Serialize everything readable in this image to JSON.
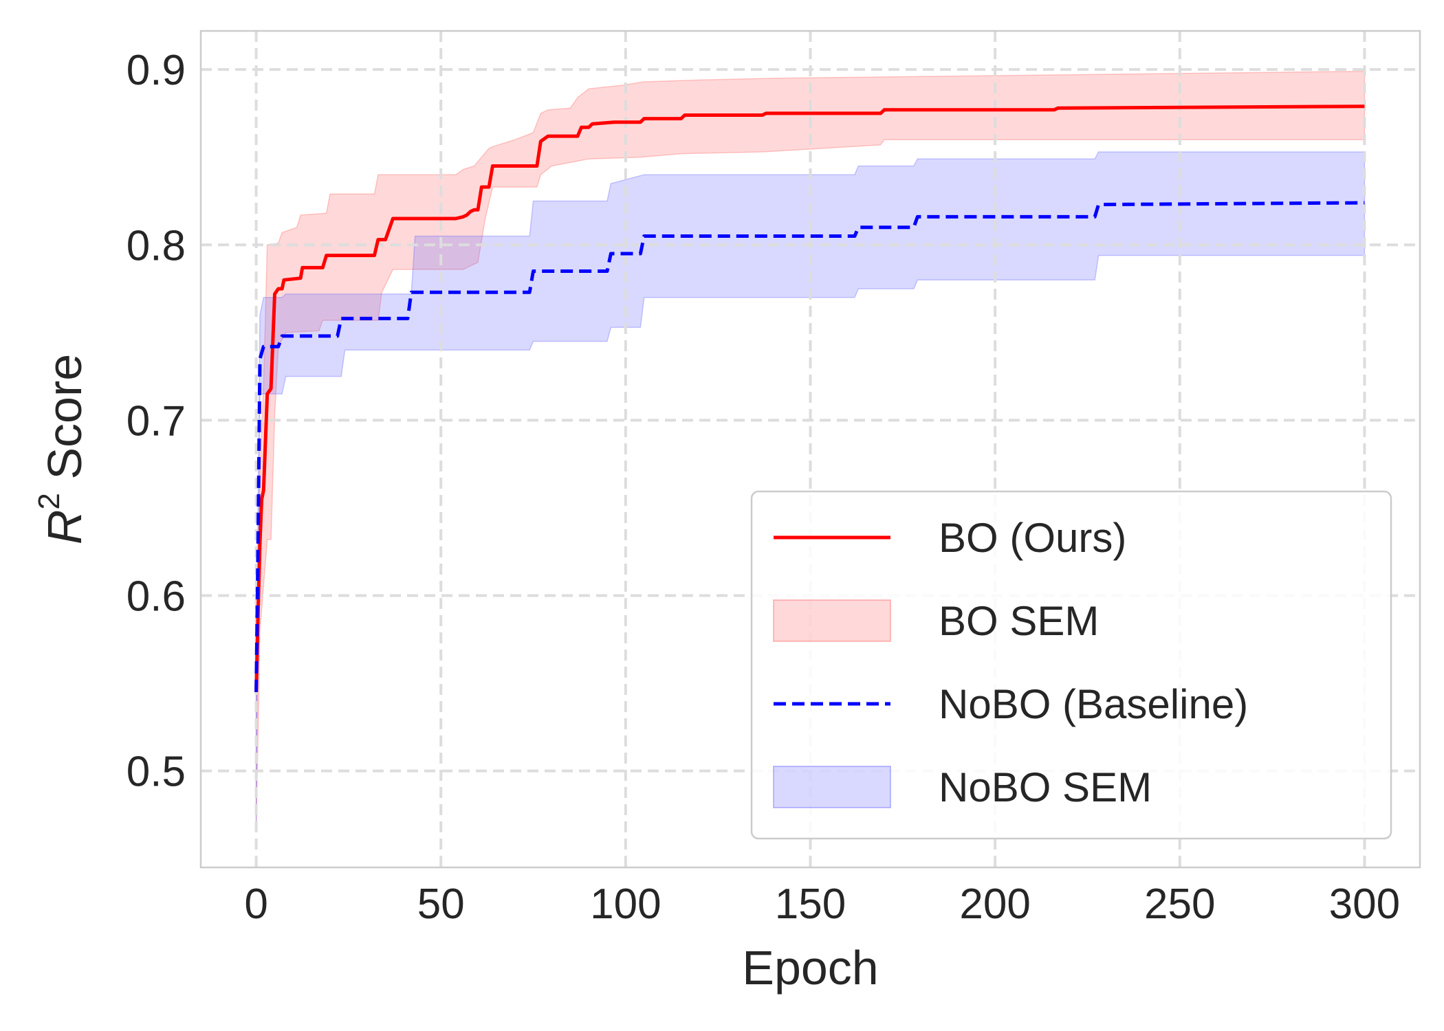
{
  "chart_data": {
    "type": "line",
    "xlabel": "Epoch",
    "ylabel": {
      "main": "R",
      "sup": "2",
      "rest": " Score"
    },
    "xlim": [
      -15,
      315
    ],
    "ylim": [
      0.445,
      0.922
    ],
    "xticks": [
      0,
      50,
      100,
      150,
      200,
      250,
      300
    ],
    "xtick_labels": [
      "0",
      "50",
      "100",
      "150",
      "200",
      "250",
      "300"
    ],
    "yticks": [
      0.5,
      0.6,
      0.7,
      0.8,
      0.9
    ],
    "ytick_labels": [
      "0.5",
      "0.6",
      "0.7",
      "0.8",
      "0.9"
    ],
    "grid": true,
    "legend_position": "lower-right",
    "colors": {
      "bo": "#ff0000",
      "bo_fill": "#ff6666",
      "nobo": "#0000ff",
      "nobo_fill": "#6666ff",
      "grid": "#dddddd",
      "spine": "#cccccc"
    },
    "series": [
      {
        "name": "BO (Ours)",
        "style": "solid",
        "points": [
          [
            0,
            0.545
          ],
          [
            0.5,
            0.59
          ],
          [
            1,
            0.63
          ],
          [
            1.5,
            0.655
          ],
          [
            2,
            0.66
          ],
          [
            3,
            0.715
          ],
          [
            4,
            0.718
          ],
          [
            5,
            0.772
          ],
          [
            6,
            0.775
          ],
          [
            7,
            0.775
          ],
          [
            7.5,
            0.78
          ],
          [
            12,
            0.781
          ],
          [
            12.5,
            0.787
          ],
          [
            18,
            0.787
          ],
          [
            19,
            0.794
          ],
          [
            32,
            0.794
          ],
          [
            33,
            0.803
          ],
          [
            35,
            0.803
          ],
          [
            37,
            0.815
          ],
          [
            54,
            0.815
          ],
          [
            56,
            0.816
          ],
          [
            57,
            0.817
          ],
          [
            58,
            0.819
          ],
          [
            59,
            0.82
          ],
          [
            60,
            0.82
          ],
          [
            61,
            0.833
          ],
          [
            63,
            0.833
          ],
          [
            64,
            0.845
          ],
          [
            76,
            0.845
          ],
          [
            77,
            0.859
          ],
          [
            79,
            0.862
          ],
          [
            87,
            0.862
          ],
          [
            88,
            0.867
          ],
          [
            90,
            0.867
          ],
          [
            91,
            0.869
          ],
          [
            97,
            0.87
          ],
          [
            104,
            0.87
          ],
          [
            105,
            0.872
          ],
          [
            115,
            0.872
          ],
          [
            116,
            0.874
          ],
          [
            137,
            0.874
          ],
          [
            138,
            0.875
          ],
          [
            169,
            0.875
          ],
          [
            170,
            0.877
          ],
          [
            216,
            0.877
          ],
          [
            217,
            0.878
          ],
          [
            300,
            0.879
          ]
        ],
        "band": {
          "name": "BO SEM",
          "upper": [
            [
              0,
              0.545
            ],
            [
              1,
              0.67
            ],
            [
              2,
              0.72
            ],
            [
              3,
              0.8
            ],
            [
              6,
              0.801
            ],
            [
              7,
              0.807
            ],
            [
              11,
              0.81
            ],
            [
              12,
              0.817
            ],
            [
              19,
              0.818
            ],
            [
              20,
              0.829
            ],
            [
              32,
              0.829
            ],
            [
              33,
              0.84
            ],
            [
              54,
              0.84
            ],
            [
              56,
              0.843
            ],
            [
              59,
              0.845
            ],
            [
              61,
              0.85
            ],
            [
              63,
              0.855
            ],
            [
              64,
              0.856
            ],
            [
              70,
              0.86
            ],
            [
              75,
              0.864
            ],
            [
              77,
              0.875
            ],
            [
              79,
              0.877
            ],
            [
              85,
              0.878
            ],
            [
              87,
              0.884
            ],
            [
              90,
              0.889
            ],
            [
              99,
              0.891
            ],
            [
              105,
              0.893
            ],
            [
              120,
              0.894
            ],
            [
              140,
              0.895
            ],
            [
              300,
              0.899
            ]
          ],
          "lower": [
            [
              0,
              0.47
            ],
            [
              0.5,
              0.52
            ],
            [
              1,
              0.58
            ],
            [
              3,
              0.632
            ],
            [
              4,
              0.632
            ],
            [
              5,
              0.703
            ],
            [
              6,
              0.742
            ],
            [
              8,
              0.75
            ],
            [
              17,
              0.751
            ],
            [
              18,
              0.757
            ],
            [
              33,
              0.757
            ],
            [
              34,
              0.773
            ],
            [
              37,
              0.786
            ],
            [
              54,
              0.786
            ],
            [
              56,
              0.786
            ],
            [
              60,
              0.79
            ],
            [
              62,
              0.815
            ],
            [
              64,
              0.833
            ],
            [
              76,
              0.833
            ],
            [
              77,
              0.84
            ],
            [
              80,
              0.845
            ],
            [
              85,
              0.847
            ],
            [
              90,
              0.849
            ],
            [
              104,
              0.85
            ],
            [
              115,
              0.852
            ],
            [
              137,
              0.853
            ],
            [
              169,
              0.857
            ],
            [
              170,
              0.86
            ],
            [
              300,
              0.86
            ]
          ]
        }
      },
      {
        "name": "NoBO (Baseline)",
        "style": "dashed",
        "points": [
          [
            0,
            0.545
          ],
          [
            0.5,
            0.63
          ],
          [
            1,
            0.735
          ],
          [
            2,
            0.742
          ],
          [
            6,
            0.742
          ],
          [
            7,
            0.748
          ],
          [
            22,
            0.748
          ],
          [
            23,
            0.758
          ],
          [
            41,
            0.758
          ],
          [
            42,
            0.773
          ],
          [
            74,
            0.773
          ],
          [
            75,
            0.785
          ],
          [
            95,
            0.785
          ],
          [
            96,
            0.795
          ],
          [
            104,
            0.795
          ],
          [
            105,
            0.805
          ],
          [
            162,
            0.805
          ],
          [
            163,
            0.81
          ],
          [
            178,
            0.81
          ],
          [
            179,
            0.816
          ],
          [
            227,
            0.816
          ],
          [
            228,
            0.823
          ],
          [
            300,
            0.824
          ]
        ],
        "band": {
          "name": "NoBO SEM",
          "upper": [
            [
              0,
              0.545
            ],
            [
              1,
              0.76
            ],
            [
              2,
              0.77
            ],
            [
              7,
              0.77
            ],
            [
              8,
              0.772
            ],
            [
              42,
              0.772
            ],
            [
              43,
              0.805
            ],
            [
              74,
              0.805
            ],
            [
              75,
              0.825
            ],
            [
              95,
              0.825
            ],
            [
              96,
              0.835
            ],
            [
              105,
              0.84
            ],
            [
              162,
              0.84
            ],
            [
              163,
              0.845
            ],
            [
              178,
              0.845
            ],
            [
              179,
              0.849
            ],
            [
              227,
              0.849
            ],
            [
              228,
              0.853
            ],
            [
              300,
              0.853
            ]
          ],
          "lower": [
            [
              0,
              0.465
            ],
            [
              1,
              0.715
            ],
            [
              7,
              0.715
            ],
            [
              8,
              0.725
            ],
            [
              23,
              0.725
            ],
            [
              24,
              0.74
            ],
            [
              74,
              0.74
            ],
            [
              75,
              0.745
            ],
            [
              95,
              0.745
            ],
            [
              96,
              0.753
            ],
            [
              104,
              0.753
            ],
            [
              105,
              0.77
            ],
            [
              162,
              0.77
            ],
            [
              163,
              0.775
            ],
            [
              178,
              0.775
            ],
            [
              179,
              0.78
            ],
            [
              227,
              0.78
            ],
            [
              228,
              0.794
            ],
            [
              300,
              0.794
            ]
          ]
        }
      }
    ]
  }
}
